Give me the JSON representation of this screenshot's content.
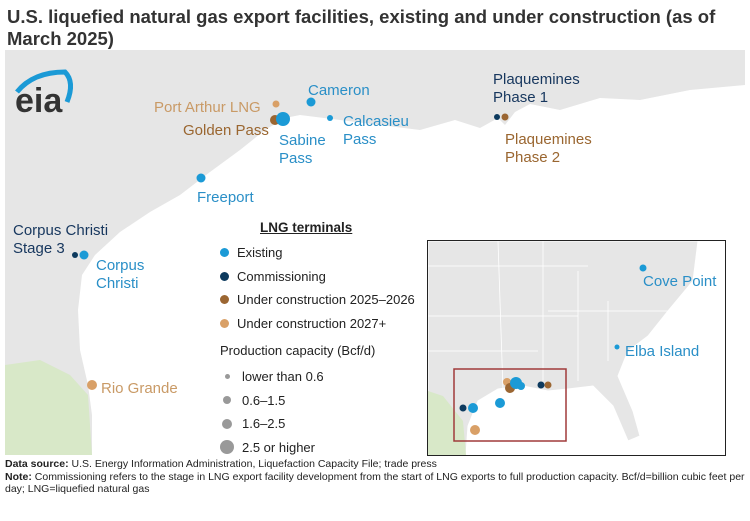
{
  "title": "U.S. liquefied natural gas export facilities, existing and under construction (as of March 2025)",
  "logo": "eia",
  "colors": {
    "existing": "#1b9ad6",
    "commissioning": "#0d3a5e",
    "construction_2025_2026": "#9b6632",
    "construction_2027": "#d9a067"
  },
  "facilities": {
    "port_arthur": "Port Arthur LNG",
    "golden_pass": "Golden Pass",
    "sabine_pass": "Sabine Pass",
    "cameron": "Cameron",
    "calcasieu_pass": "Calcasieu Pass",
    "freeport": "Freeport",
    "corpus_christi_stage3": "Corpus Christi Stage 3",
    "corpus_christi": "Corpus Christi",
    "rio_grande": "Rio Grande",
    "plaquemines_1": "Plaquemines Phase 1",
    "plaquemines_2": "Plaquemines Phase 2",
    "cove_point": "Cove Point",
    "elba_island": "Elba Island"
  },
  "legend": {
    "title": "LNG terminals",
    "types": [
      "Existing",
      "Commissioning",
      "Under construction 2025–2026",
      "Under construction 2027+"
    ],
    "capacity_title": "Production capacity (Bcf/d)",
    "sizes": [
      "lower than 0.6",
      "0.6–1.5",
      "1.6–2.5",
      "2.5 or higher"
    ]
  },
  "notes": {
    "source_label": "Data source:",
    "source": "U.S. Energy Information Administration, Liquefaction Capacity File; trade press",
    "note_label": "Note:",
    "note": "Commissioning refers to the stage in LNG export facility development from the start of LNG exports to full production capacity. Bcf/d=billion cubic feet per day; LNG=liquefied natural gas"
  }
}
